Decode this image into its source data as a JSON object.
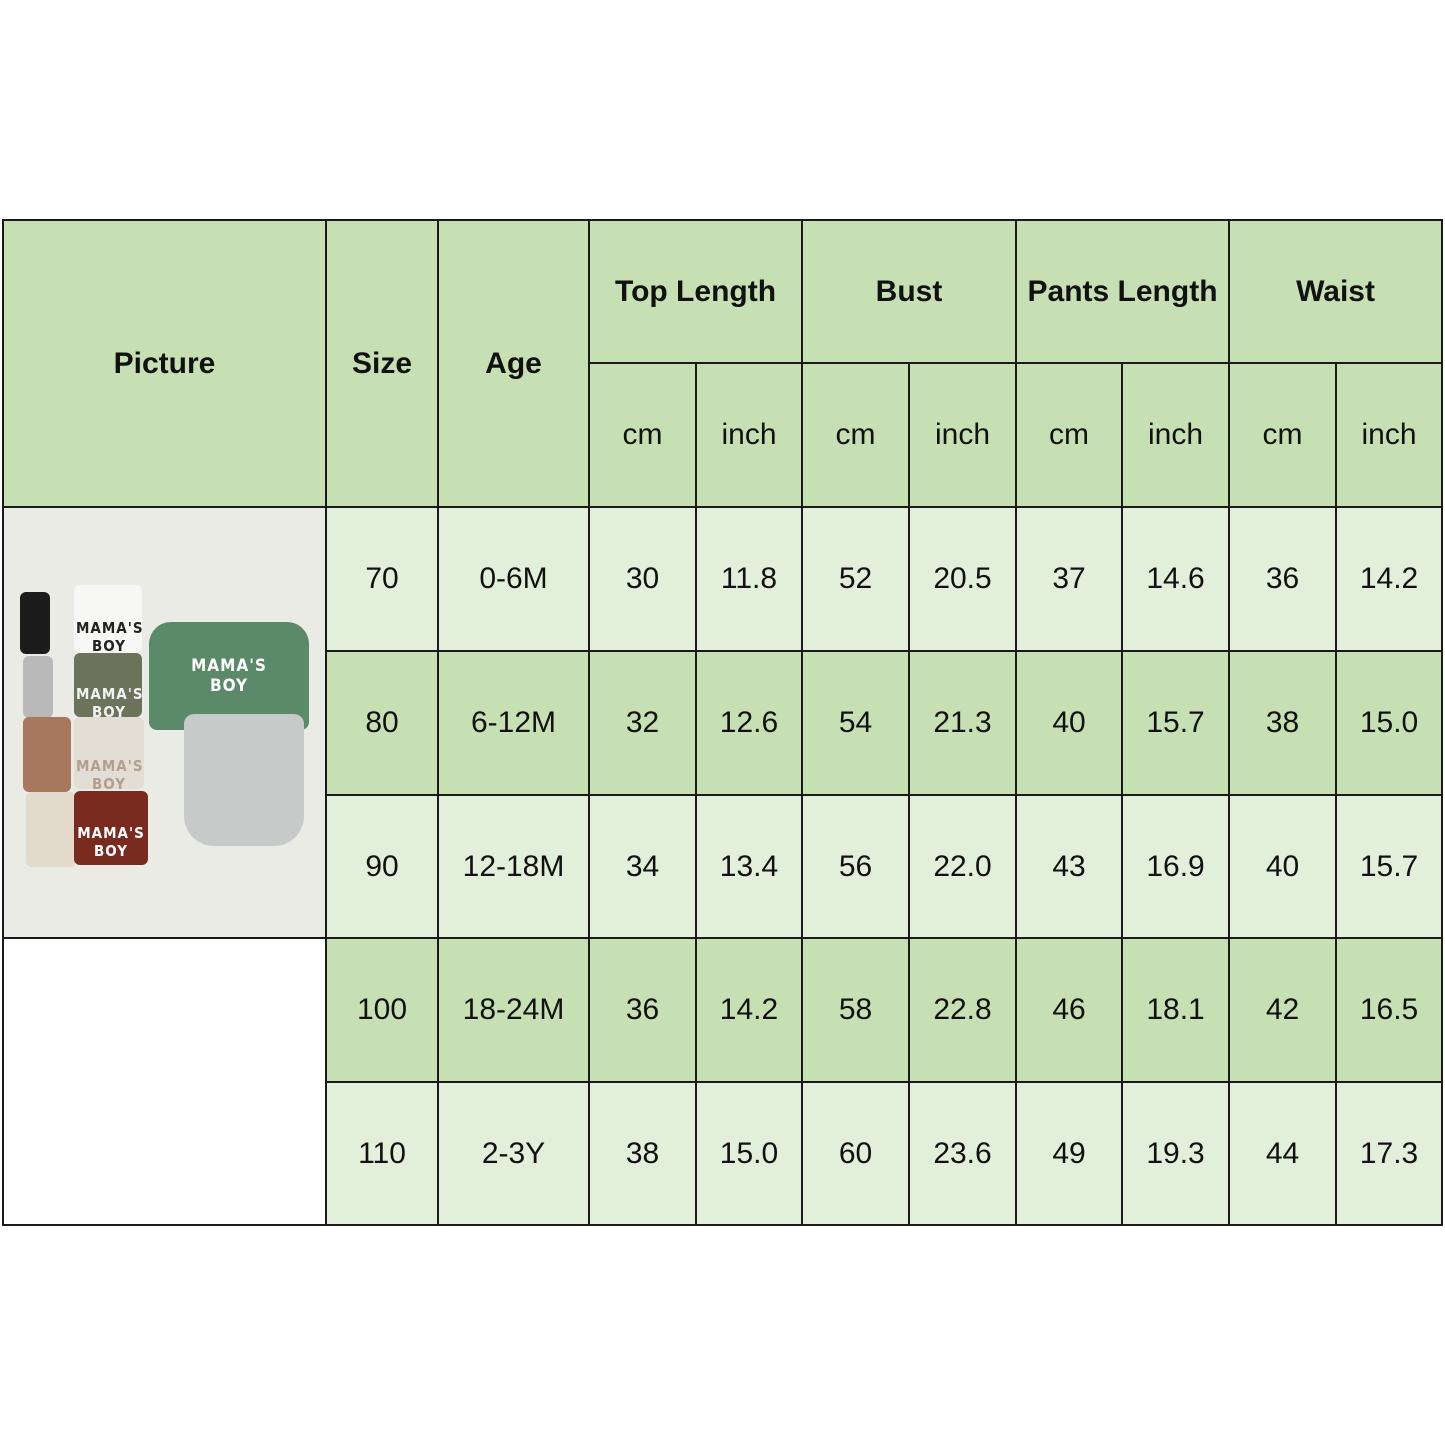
{
  "header": {
    "picture": "Picture",
    "size": "Size",
    "age": "Age",
    "groups": [
      "Top Length",
      "Bust",
      "Pants Length",
      "Waist"
    ],
    "units": [
      "cm",
      "inch",
      "cm",
      "inch",
      "cm",
      "inch",
      "cm",
      "inch"
    ]
  },
  "rows": [
    {
      "size": "70",
      "age": "0-6M",
      "values": [
        "30",
        "11.8",
        "52",
        "20.5",
        "37",
        "14.6",
        "36",
        "14.2"
      ]
    },
    {
      "size": "80",
      "age": "6-12M",
      "values": [
        "32",
        "12.6",
        "54",
        "21.3",
        "40",
        "15.7",
        "38",
        "15.0"
      ]
    },
    {
      "size": "90",
      "age": "12-18M",
      "values": [
        "34",
        "13.4",
        "56",
        "22.0",
        "43",
        "16.9",
        "40",
        "15.7"
      ]
    },
    {
      "size": "100",
      "age": "18-24M",
      "values": [
        "36",
        "14.2",
        "58",
        "22.8",
        "46",
        "18.1",
        "42",
        "16.5"
      ]
    },
    {
      "size": "110",
      "age": "2-3Y",
      "values": [
        "38",
        "15.0",
        "60",
        "23.6",
        "49",
        "19.3",
        "44",
        "17.3"
      ]
    }
  ],
  "picture": {
    "print_text": "MAMA'S BOY"
  },
  "colors": {
    "header": "#c6e0b4",
    "row_light": "#e2efda",
    "row_dark": "#c6e0b4",
    "border": "#1a1a1a"
  }
}
